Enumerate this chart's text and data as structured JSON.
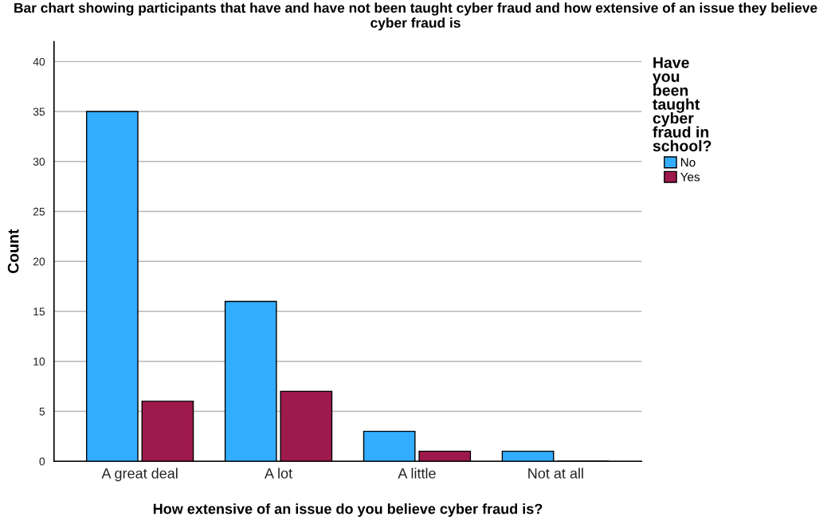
{
  "chart_data": {
    "type": "bar",
    "title": "Bar chart showing participants that have and have not been taught cyber fraud and how extensive of an issue they believe cyber fraud is",
    "xlabel": "How extensive of an issue do you believe cyber fraud is?",
    "ylabel": "Count",
    "legend_title": "Have\nyou\nbeen\ntaught\ncyber\nfraud in\nschool?",
    "categories": [
      "A great deal",
      "A lot",
      "A little",
      "Not at all"
    ],
    "series": [
      {
        "name": "No",
        "color": "#33adff",
        "values": [
          35,
          16,
          3,
          1
        ]
      },
      {
        "name": "Yes",
        "color": "#9e1a4d",
        "values": [
          6,
          7,
          1,
          0
        ]
      }
    ],
    "ylim": [
      0,
      42
    ],
    "yticks": [
      0,
      5,
      10,
      15,
      20,
      25,
      30,
      35,
      40
    ],
    "grid": "y",
    "legend": "right"
  }
}
